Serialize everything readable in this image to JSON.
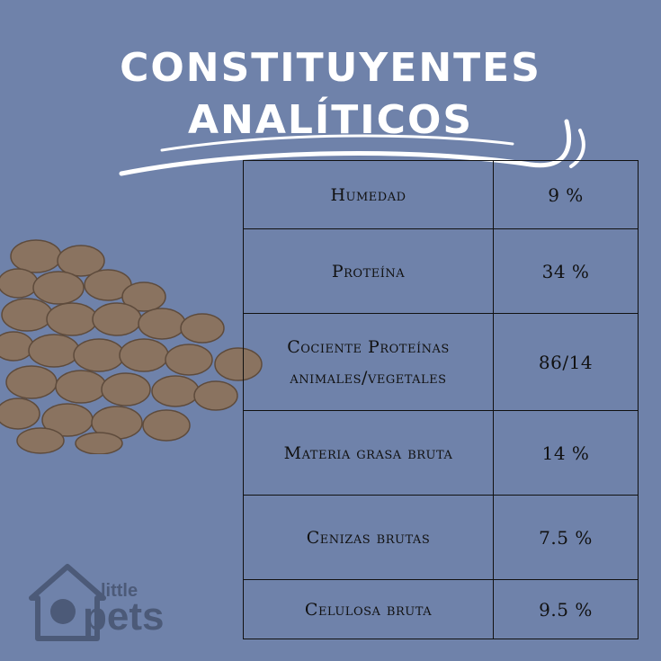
{
  "title": {
    "line1": "CONSTITUYENTES",
    "line2": "ANALÍTICOS"
  },
  "table": {
    "rows": [
      {
        "label": "Humedad",
        "value": "9 %"
      },
      {
        "label": "Proteína",
        "value": "34 %"
      },
      {
        "label": "Cociente Proteínas animales/vegetales",
        "value": "86/14"
      },
      {
        "label": "Materia grasa bruta",
        "value": "14 %"
      },
      {
        "label": "Cenizas brutas",
        "value": "7.5 %"
      },
      {
        "label": "Celulosa bruta",
        "value": "9.5 %"
      }
    ]
  },
  "logo": {
    "word_top": "little",
    "word_main": "pets"
  },
  "colors": {
    "background": "#6f82aa",
    "title": "#ffffff",
    "kibble": "#8a7360",
    "logo": "#4c5a78"
  }
}
